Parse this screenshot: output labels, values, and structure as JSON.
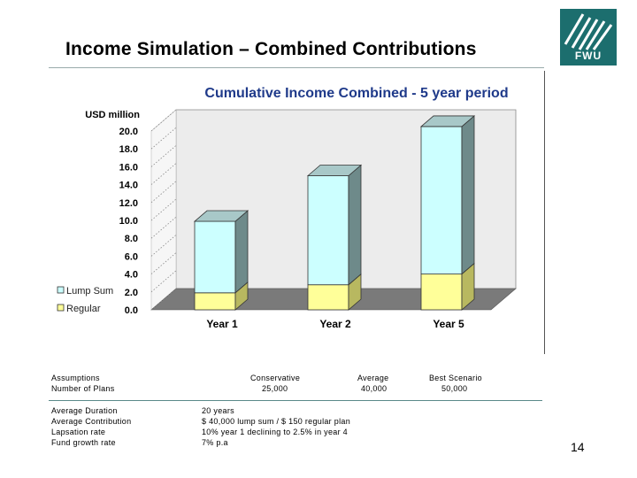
{
  "slide": {
    "title": "Income Simulation – Combined Contributions",
    "page_number": "14",
    "logo_text": "FWU"
  },
  "chart_data": {
    "type": "bar",
    "stacked": true,
    "title": "Cumulative Income Combined - 5 year period",
    "ylabel": "USD million",
    "xlabel": "",
    "categories": [
      "Year 1",
      "Year 2",
      "Year 5"
    ],
    "series": [
      {
        "name": "Regular",
        "values": [
          1.9,
          2.8,
          4.0
        ],
        "color": "#ffff99"
      },
      {
        "name": "Lump Sum",
        "values": [
          8.0,
          12.2,
          16.5
        ],
        "color": "#ccffff"
      }
    ],
    "ylim": [
      0,
      20
    ],
    "yticks": [
      "0.0",
      "2.0",
      "4.0",
      "6.0",
      "8.0",
      "10.0",
      "12.0",
      "14.0",
      "16.0",
      "18.0",
      "20.0"
    ],
    "legend_position": "left"
  },
  "assumptions": {
    "header": {
      "label": "Assumptions",
      "conservative": "Conservative",
      "average": "Average",
      "best": "Best Scenario"
    },
    "plans": {
      "label": "Number of Plans",
      "conservative": "25,000",
      "average": "40,000",
      "best": "50,000"
    },
    "rows": [
      {
        "label": "Average Duration",
        "value": "20 years"
      },
      {
        "label": "Average Contribution",
        "value": "$ 40,000 lump sum / $ 150 regular plan"
      },
      {
        "label": "Lapsation rate",
        "value": "10% year 1 declining to 2.5% in year 4"
      },
      {
        "label": "Fund growth rate",
        "value": "7% p.a"
      }
    ]
  }
}
